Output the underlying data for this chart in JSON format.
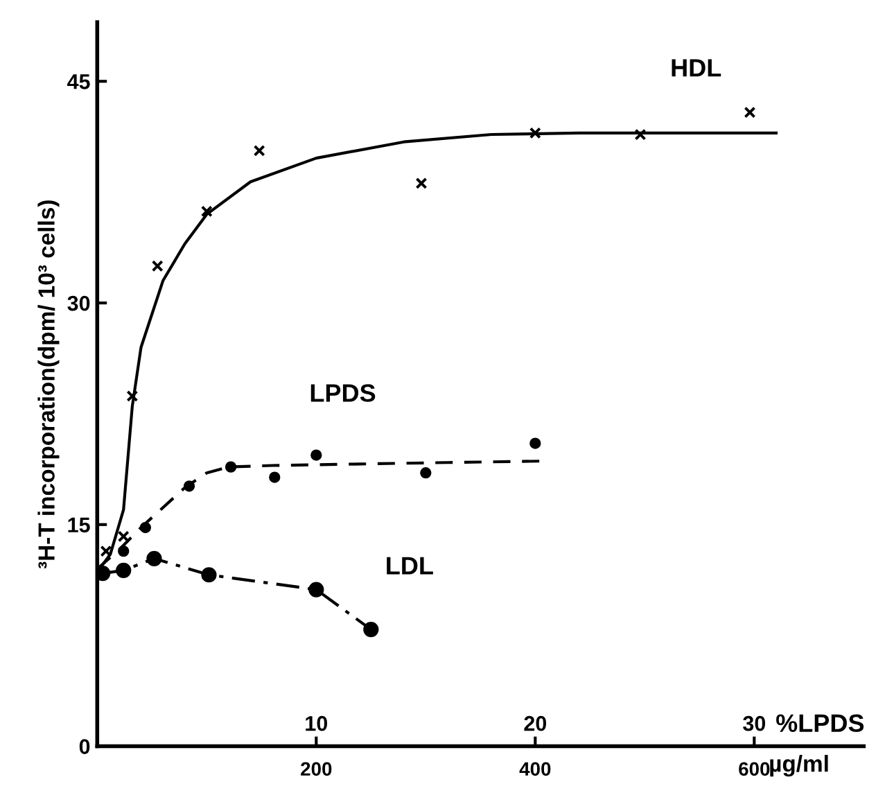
{
  "chart_data": {
    "type": "scatter",
    "ylabel": "³H-T incorporation(dpm/ 10³ cells)",
    "xlabel": "%LPDS",
    "x2label": "µg/ml",
    "xlim": [
      0,
      35
    ],
    "xticks": [
      10,
      20,
      30
    ],
    "x2lim": [
      0,
      700
    ],
    "x2ticks": [
      200,
      400,
      600
    ],
    "ylim": [
      0,
      49
    ],
    "yticks": [
      0,
      15,
      30,
      45
    ],
    "grid": false,
    "legend": false,
    "series": [
      {
        "name": "HDL",
        "color": "#000000",
        "marker": "cross",
        "x": [
          0.4,
          1.2,
          1.6,
          2.75,
          5.0,
          7.4,
          14.8,
          20.0,
          24.8,
          29.8
        ],
        "values": [
          13.2,
          14.2,
          23.7,
          32.5,
          36.2,
          40.3,
          38.1,
          41.5,
          41.4,
          42.9
        ]
      },
      {
        "type": "line",
        "color": "#000000",
        "line_style": "solid",
        "marker": "none",
        "x": [
          0,
          0.6,
          1.2,
          1.6,
          2,
          3,
          4,
          5,
          7,
          10,
          14,
          18,
          22,
          31
        ],
        "values": [
          11.8,
          13,
          16,
          23,
          27,
          31.5,
          34,
          36,
          38.2,
          39.8,
          40.9,
          41.4,
          41.5,
          41.5
        ]
      },
      {
        "name": "LPDS",
        "color": "#000000",
        "marker": "circle",
        "x": [
          1.2,
          2.2,
          4.2,
          6.1,
          8.1,
          10.0,
          15.0,
          20.0
        ],
        "values": [
          13.2,
          14.8,
          17.6,
          18.9,
          18.2,
          19.7,
          18.5,
          20.5
        ]
      },
      {
        "type": "line",
        "color": "#000000",
        "line_style": "dashed",
        "marker": "none",
        "x": [
          0,
          1,
          2,
          4,
          5,
          6,
          8,
          12,
          16,
          20.4
        ],
        "values": [
          12,
          13.3,
          14.8,
          17.5,
          18.5,
          18.9,
          19.0,
          19.1,
          19.2,
          19.3
        ]
      },
      {
        "type": "line",
        "name": "LDL",
        "color": "#000000",
        "line_style": "dashdot",
        "marker": "circle",
        "x": [
          0.25,
          1.2,
          2.6,
          5.1,
          10.0,
          12.5
        ],
        "values": [
          11.7,
          11.9,
          12.7,
          11.6,
          10.6,
          7.9
        ]
      }
    ]
  }
}
